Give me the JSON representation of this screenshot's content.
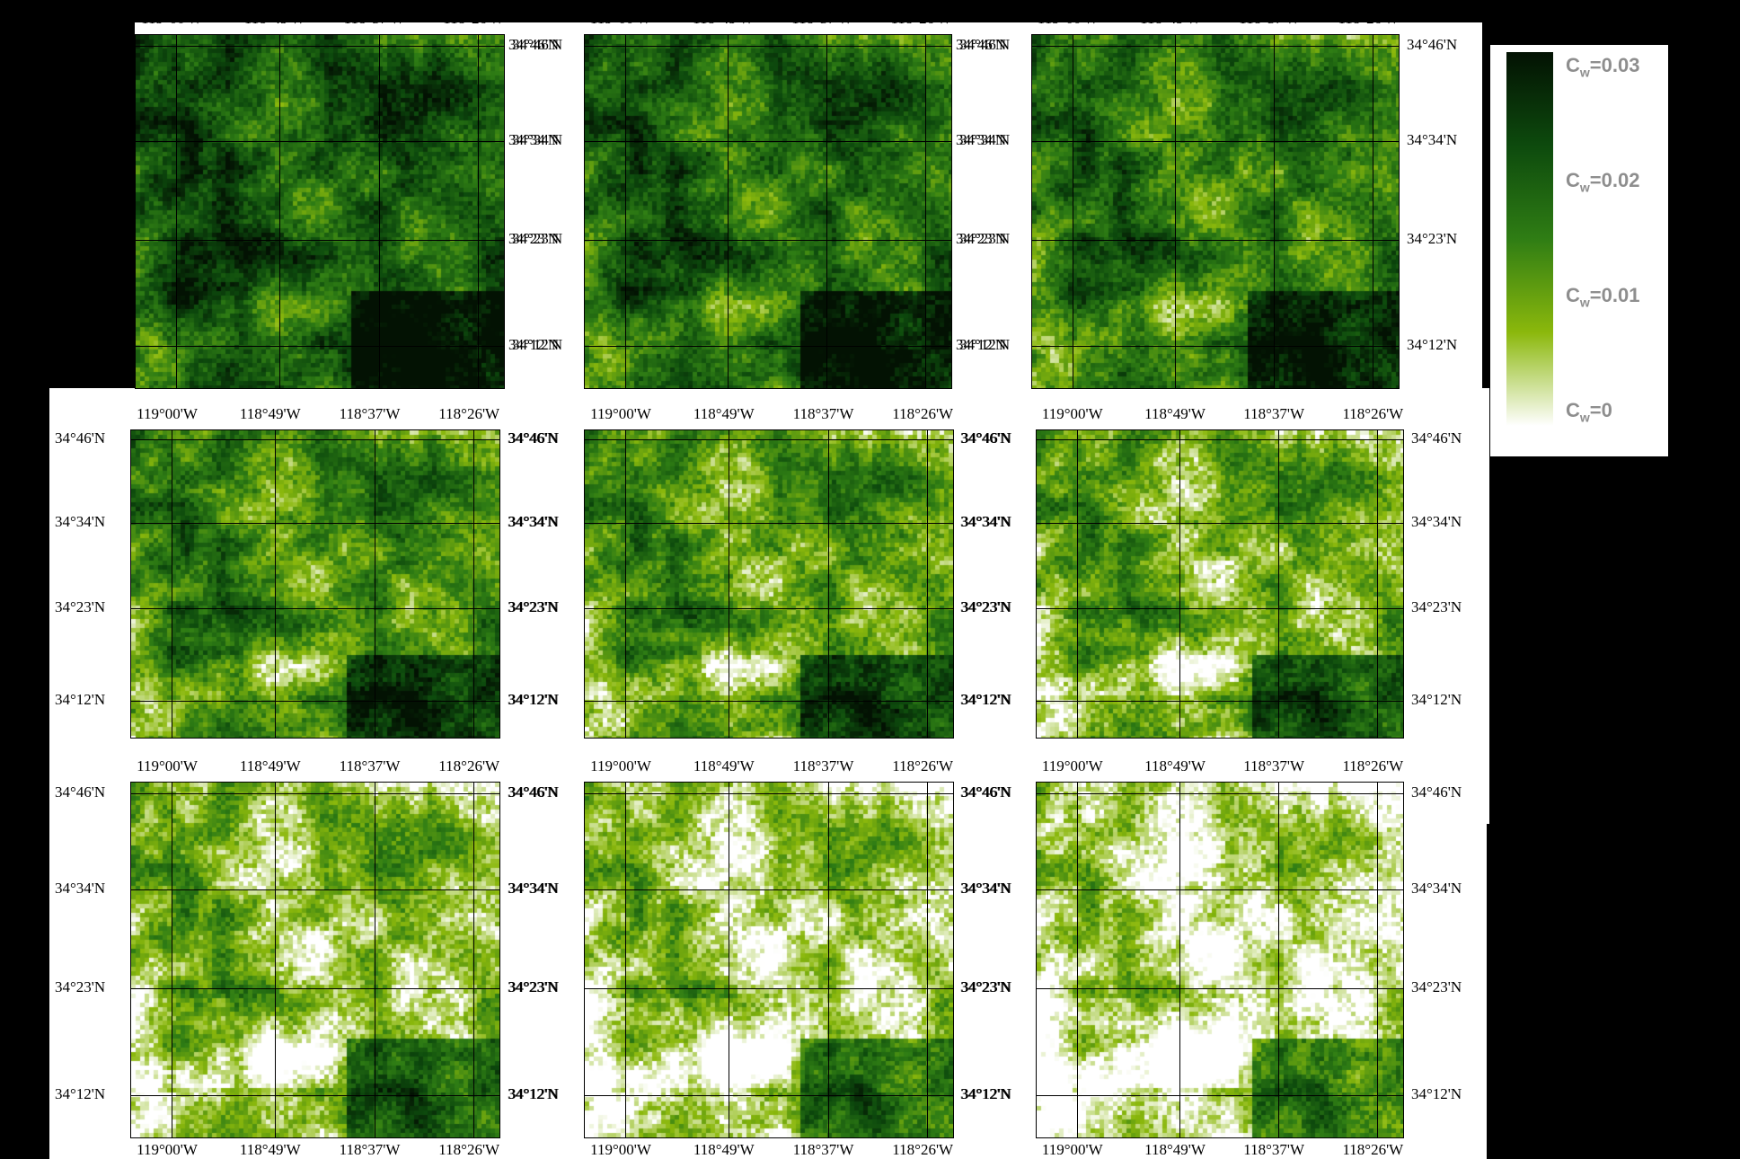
{
  "figure": {
    "lon_ticks": [
      "119°00'W",
      "118°49'W",
      "118°37'W",
      "118°26'W"
    ],
    "lat_ticks": [
      "34°46'N",
      "34°34'N",
      "34°23'N",
      "34°12'N"
    ],
    "panels_count": 9
  },
  "colorbar": {
    "labels": [
      {
        "sym": "C",
        "sub": "w",
        "value": "=0.03"
      },
      {
        "sym": "C",
        "sub": "w",
        "value": "=0.02"
      },
      {
        "sym": "C",
        "sub": "w",
        "value": "=0.01"
      },
      {
        "sym": "C",
        "sub": "w",
        "value": "=0"
      }
    ],
    "colors": [
      "#031203",
      "#0d4a0d",
      "#2f7d14",
      "#8bb80c",
      "#ffffff"
    ],
    "range": [
      0,
      0.03
    ]
  }
}
